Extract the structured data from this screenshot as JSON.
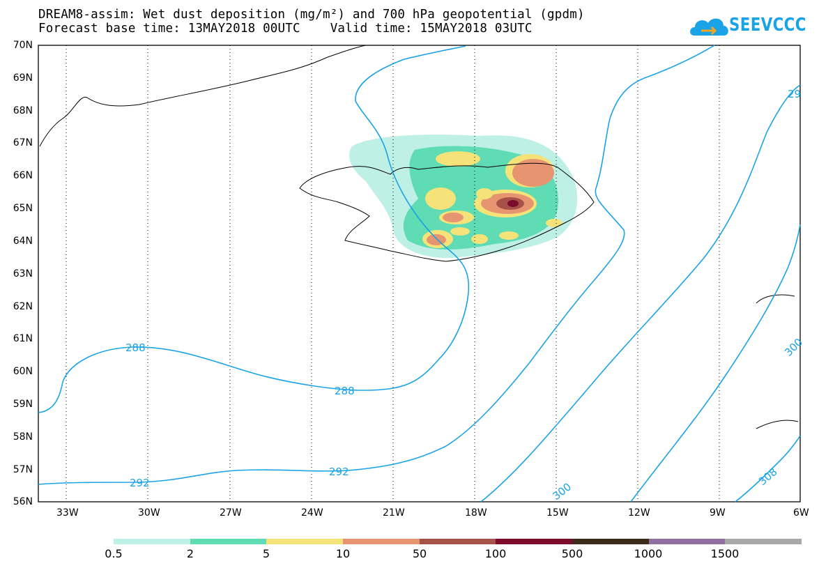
{
  "title": {
    "line1": "DREAM8-assim: Wet dust deposition (mg/m²) and 700 hPa geopotential (gpdm)",
    "line2": "Forecast base time: 13MAY2018 00UTC    Valid time: 15MAY2018 03UTC"
  },
  "logo": {
    "text": "SEEVCCC",
    "color": "#1aa3e6"
  },
  "axes": {
    "latitudes": [
      "70N",
      "69N",
      "68N",
      "67N",
      "66N",
      "65N",
      "64N",
      "63N",
      "62N",
      "61N",
      "60N",
      "59N",
      "58N",
      "57N",
      "56N"
    ],
    "longitudes": [
      "33W",
      "30W",
      "27W",
      "24W",
      "21W",
      "18W",
      "15W",
      "12W",
      "9W",
      "6W"
    ],
    "grid": "dotted"
  },
  "contours": {
    "color": "#1aa3e6",
    "labels": [
      "288",
      "288",
      "292",
      "292",
      "29",
      "300",
      "300",
      "308"
    ]
  },
  "legend": {
    "colors": [
      "#bff0e6",
      "#5fdcb4",
      "#f5e37a",
      "#e79571",
      "#a65249",
      "#7c0b2c",
      "#3c2a1a",
      "#9070a0",
      "#a8a8a8"
    ],
    "labels": [
      "0.5",
      "2",
      "5",
      "10",
      "50",
      "100",
      "500",
      "1000",
      "1500"
    ]
  },
  "layout": {}
}
